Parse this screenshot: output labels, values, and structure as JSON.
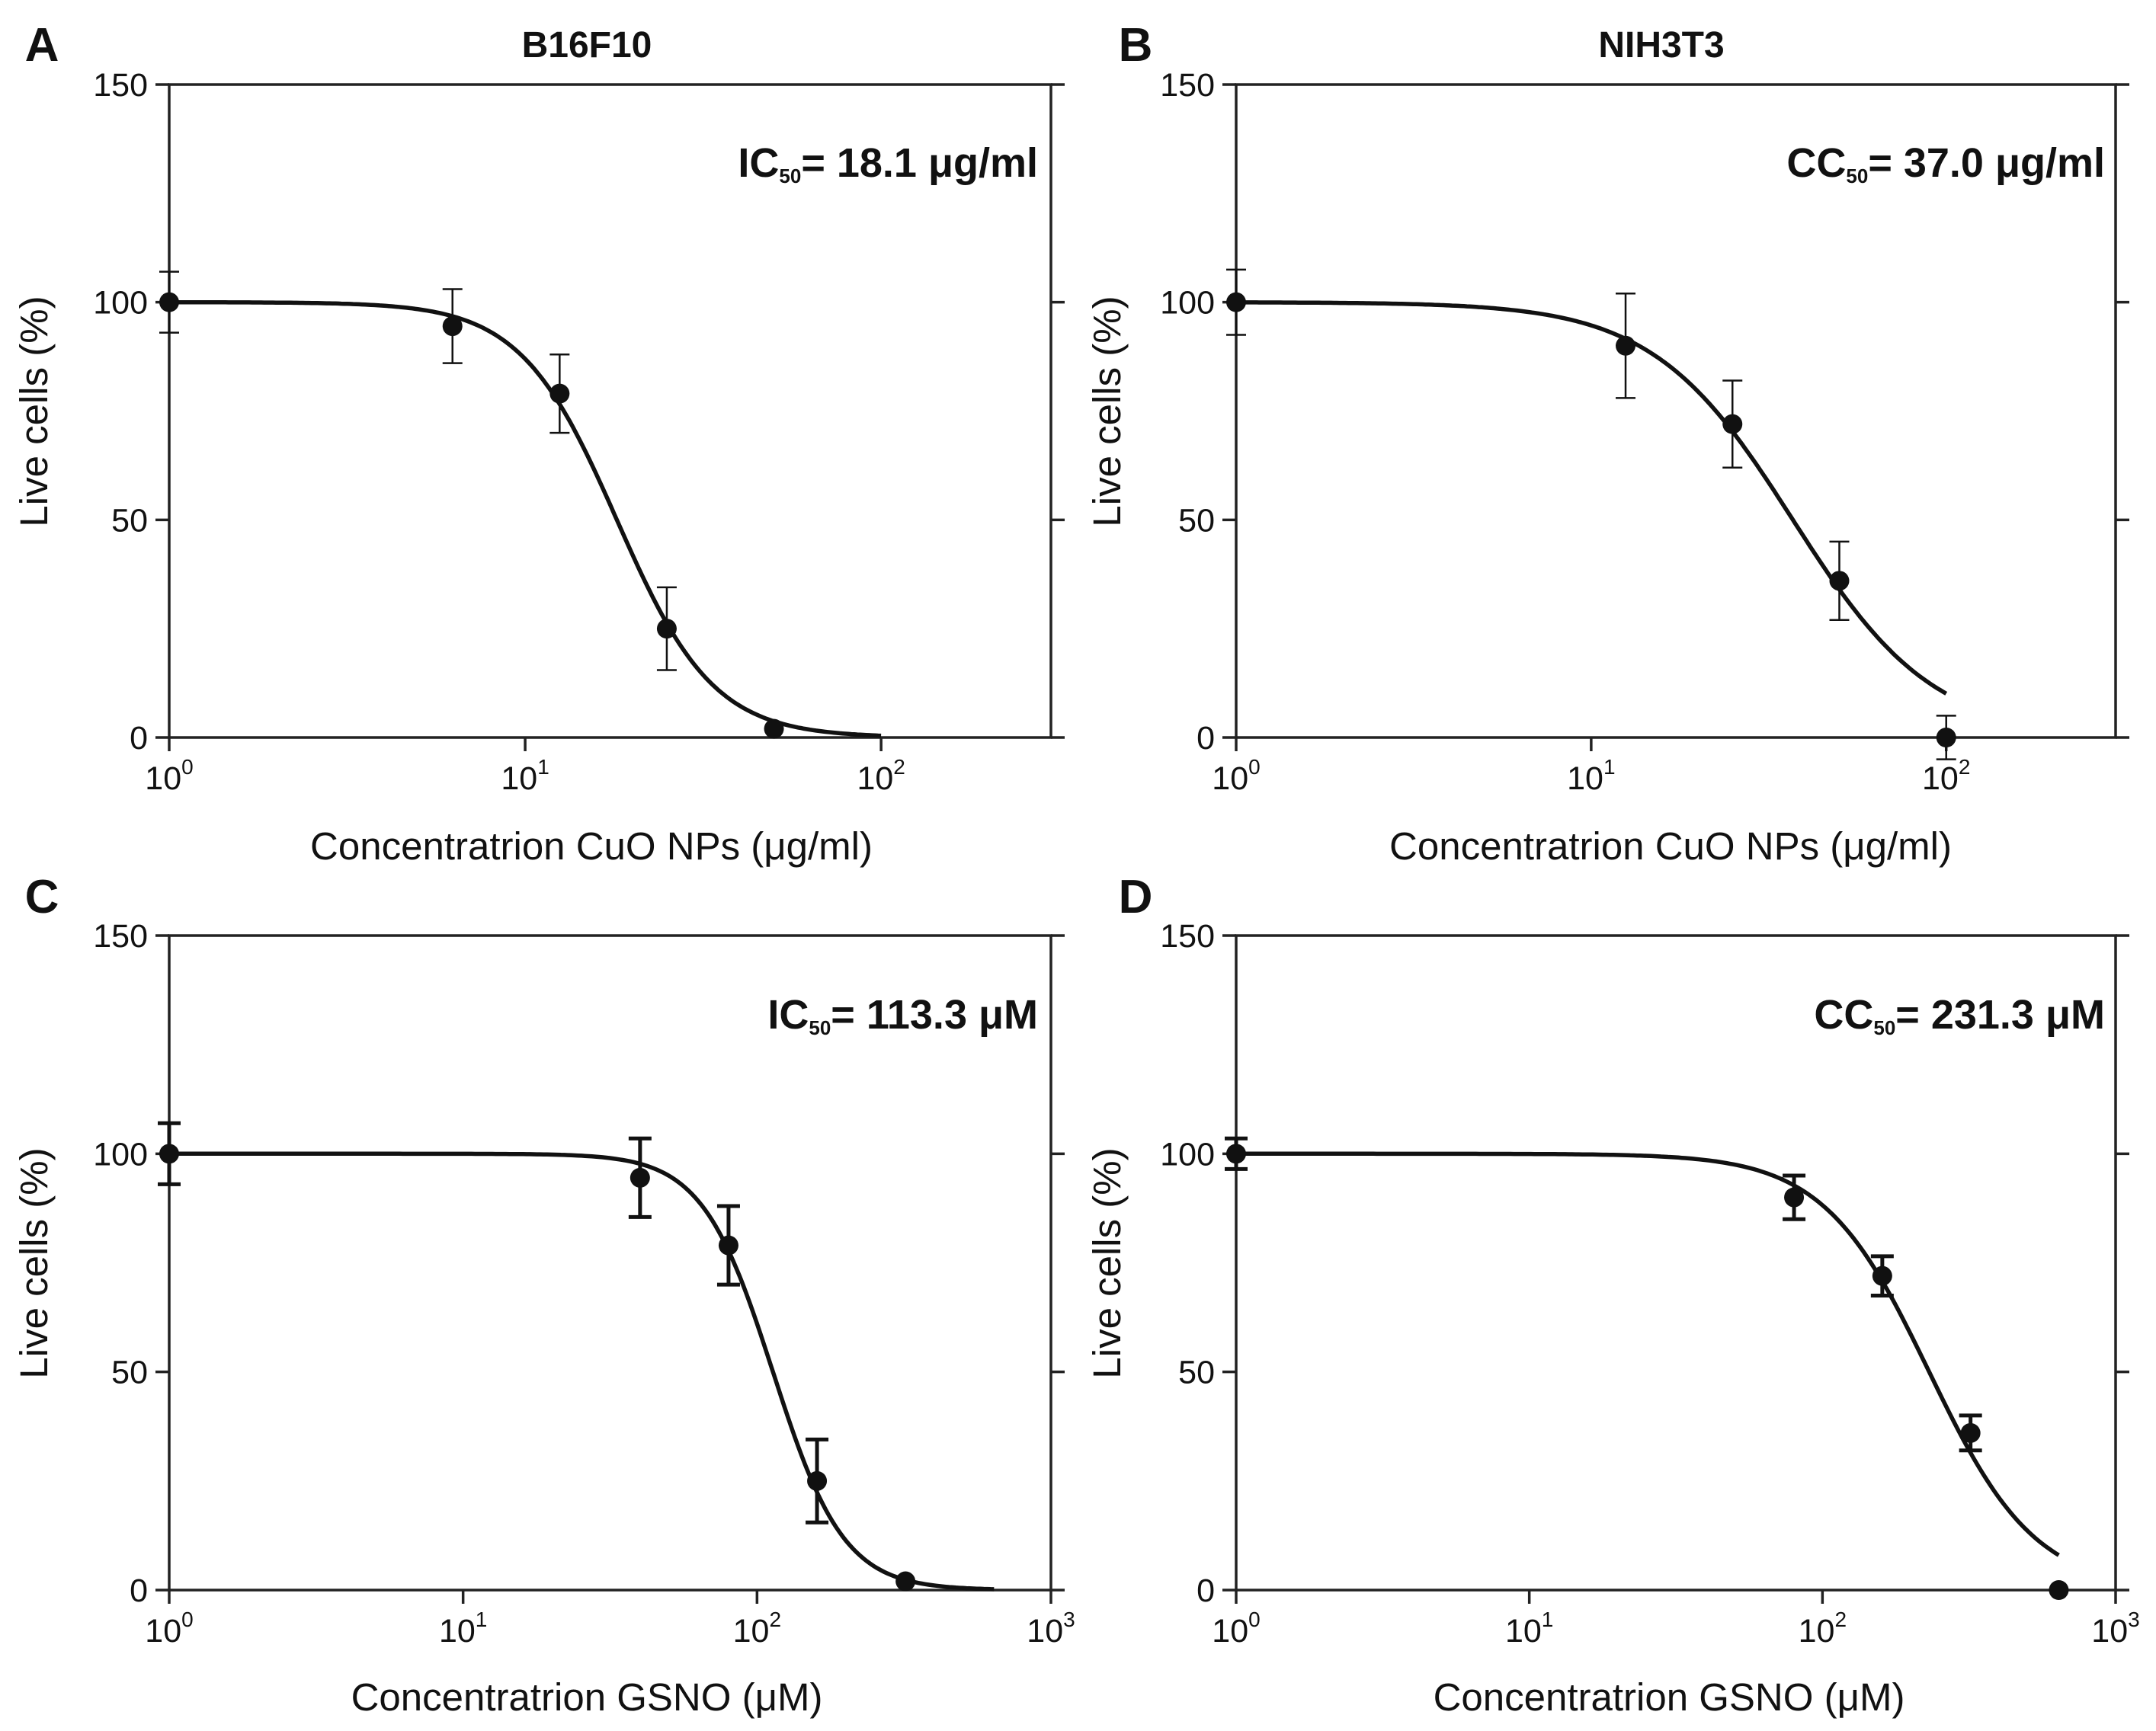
{
  "chart_data": [
    {
      "type": "scatter",
      "panel": "A",
      "title": "B16F10",
      "annotation": {
        "prefix": "IC",
        "subscript": "50",
        "text": "= 18.1 μg/ml"
      },
      "xlabel": "Concentratrion CuO NPs (μg/ml)",
      "ylabel": "Live cells (%)",
      "xscale": "log",
      "xlim": [
        1,
        300
      ],
      "ylim": [
        0,
        150
      ],
      "xticks": [
        1,
        10,
        100
      ],
      "xtick_labels": [
        {
          "base": "10",
          "exp": "0"
        },
        {
          "base": "10",
          "exp": "1"
        },
        {
          "base": "10",
          "exp": "2"
        }
      ],
      "yticks": [
        0,
        50,
        100,
        150
      ],
      "ytick_labels": [
        "0",
        "50",
        "100",
        "150"
      ],
      "grid": false,
      "points": [
        {
          "x": 1,
          "y": 100,
          "err": 7
        },
        {
          "x": 6.25,
          "y": 94.5,
          "err": 8.5
        },
        {
          "x": 12.5,
          "y": 79,
          "err": 9
        },
        {
          "x": 25,
          "y": 25,
          "err": 9.5
        },
        {
          "x": 50,
          "y": 2,
          "err": 0
        }
      ],
      "fit": {
        "top": 100,
        "bottom": 0,
        "ec50": 18.1,
        "hill": 3.2,
        "x_range": [
          1,
          100
        ]
      }
    },
    {
      "type": "scatter",
      "panel": "B",
      "title": "NIH3T3",
      "annotation": {
        "prefix": "CC",
        "subscript": "50",
        "text": "= 37.0 μg/ml"
      },
      "xlabel": "Concentratrion CuO NPs (μg/ml)",
      "ylabel": "Live cells (%)",
      "xscale": "log",
      "xlim": [
        1,
        300
      ],
      "ylim": [
        0,
        150
      ],
      "xticks": [
        1,
        10,
        100
      ],
      "xtick_labels": [
        {
          "base": "10",
          "exp": "0"
        },
        {
          "base": "10",
          "exp": "1"
        },
        {
          "base": "10",
          "exp": "2"
        }
      ],
      "yticks": [
        0,
        50,
        100,
        150
      ],
      "ytick_labels": [
        "0",
        "50",
        "100",
        "150"
      ],
      "grid": false,
      "points": [
        {
          "x": 1,
          "y": 100,
          "err": 7.5
        },
        {
          "x": 12.5,
          "y": 90,
          "err": 12
        },
        {
          "x": 25,
          "y": 72,
          "err": 10
        },
        {
          "x": 50,
          "y": 36,
          "err": 9
        },
        {
          "x": 100,
          "y": 0,
          "err": 5
        }
      ],
      "fit": {
        "top": 100,
        "bottom": 0,
        "ec50": 37.0,
        "hill": 2.2,
        "x_range": [
          1,
          100
        ]
      }
    },
    {
      "type": "scatter",
      "panel": "C",
      "title": "",
      "annotation": {
        "prefix": "IC",
        "subscript": "50",
        "text": "= 113.3 μM"
      },
      "xlabel": "Concentratrion GSNO (μM)",
      "ylabel": "Live cells (%)",
      "xscale": "log",
      "xlim": [
        1,
        1000
      ],
      "ylim": [
        0,
        150
      ],
      "xticks": [
        1,
        10,
        100,
        1000
      ],
      "xtick_labels": [
        {
          "base": "10",
          "exp": "0"
        },
        {
          "base": "10",
          "exp": "1"
        },
        {
          "base": "10",
          "exp": "2"
        },
        {
          "base": "10",
          "exp": "3"
        }
      ],
      "yticks": [
        0,
        50,
        100,
        150
      ],
      "ytick_labels": [
        "0",
        "50",
        "100",
        "150"
      ],
      "grid": false,
      "points": [
        {
          "x": 1,
          "y": 100,
          "err": 7
        },
        {
          "x": 40,
          "y": 94.5,
          "err": 9
        },
        {
          "x": 80,
          "y": 79,
          "err": 9
        },
        {
          "x": 160,
          "y": 25,
          "err": 9.5
        },
        {
          "x": 320,
          "y": 2,
          "err": 0
        }
      ],
      "fit": {
        "top": 100,
        "bottom": 0,
        "ec50": 113.3,
        "hill": 3.6,
        "x_range": [
          1,
          640
        ]
      }
    },
    {
      "type": "scatter",
      "panel": "D",
      "title": "",
      "annotation": {
        "prefix": "CC",
        "subscript": "50",
        "text": "= 231.3 μM"
      },
      "xlabel": "Concentratrion GSNO (μM)",
      "ylabel": "Live cells (%)",
      "xscale": "log",
      "xlim": [
        1,
        1000
      ],
      "ylim": [
        0,
        150
      ],
      "xticks": [
        1,
        10,
        100,
        1000
      ],
      "xtick_labels": [
        {
          "base": "10",
          "exp": "0"
        },
        {
          "base": "10",
          "exp": "1"
        },
        {
          "base": "10",
          "exp": "2"
        },
        {
          "base": "10",
          "exp": "3"
        }
      ],
      "yticks": [
        0,
        50,
        100,
        150
      ],
      "ytick_labels": [
        "0",
        "50",
        "100",
        "150"
      ],
      "grid": false,
      "points": [
        {
          "x": 1,
          "y": 100,
          "err": 3.5
        },
        {
          "x": 80,
          "y": 90,
          "err": 5
        },
        {
          "x": 160,
          "y": 72,
          "err": 4.5
        },
        {
          "x": 320,
          "y": 36,
          "err": 4
        },
        {
          "x": 640,
          "y": 0,
          "err": 0
        }
      ],
      "fit": {
        "top": 100,
        "bottom": 0,
        "ec50": 231.3,
        "hill": 2.4,
        "x_range": [
          1,
          640
        ]
      }
    }
  ]
}
